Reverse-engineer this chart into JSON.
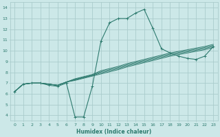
{
  "xlabel": "Humidex (Indice chaleur)",
  "ylabel": "",
  "bg_color": "#cce8e8",
  "grid_color": "#aacccc",
  "line_color": "#2d7a6e",
  "xlim": [
    -0.5,
    23.5
  ],
  "ylim": [
    3.5,
    14.5
  ],
  "xticks": [
    0,
    1,
    2,
    3,
    4,
    5,
    6,
    7,
    8,
    9,
    10,
    11,
    12,
    13,
    14,
    15,
    16,
    17,
    18,
    19,
    20,
    21,
    22,
    23
  ],
  "yticks": [
    4,
    5,
    6,
    7,
    8,
    9,
    10,
    11,
    12,
    13,
    14
  ],
  "lines": [
    {
      "y": [
        6.2,
        6.9,
        7.0,
        7.0,
        6.8,
        6.7,
        7.0,
        3.85,
        3.85,
        6.7,
        10.9,
        12.6,
        13.0,
        13.0,
        13.5,
        13.85,
        12.1,
        10.2,
        9.8,
        9.5,
        9.3,
        9.2,
        9.5,
        10.4
      ],
      "marker": true
    },
    {
      "y": [
        6.2,
        6.9,
        7.0,
        7.0,
        6.9,
        6.8,
        7.1,
        7.25,
        7.45,
        7.65,
        7.85,
        8.05,
        8.25,
        8.5,
        8.7,
        8.9,
        9.1,
        9.3,
        9.5,
        9.65,
        9.8,
        9.95,
        10.1,
        10.3
      ],
      "marker": false
    },
    {
      "y": [
        6.2,
        6.9,
        7.0,
        7.0,
        6.9,
        6.8,
        7.1,
        7.3,
        7.5,
        7.7,
        7.95,
        8.15,
        8.35,
        8.6,
        8.8,
        9.0,
        9.2,
        9.4,
        9.6,
        9.75,
        9.9,
        10.05,
        10.2,
        10.4
      ],
      "marker": false
    },
    {
      "y": [
        6.2,
        6.9,
        7.0,
        7.0,
        6.9,
        6.8,
        7.1,
        7.35,
        7.55,
        7.75,
        8.05,
        8.25,
        8.45,
        8.7,
        8.9,
        9.1,
        9.3,
        9.5,
        9.7,
        9.85,
        10.0,
        10.15,
        10.3,
        10.5
      ],
      "marker": false
    },
    {
      "y": [
        6.2,
        6.9,
        7.0,
        7.0,
        6.9,
        6.8,
        7.1,
        7.4,
        7.6,
        7.8,
        8.15,
        8.35,
        8.55,
        8.8,
        9.0,
        9.2,
        9.4,
        9.6,
        9.8,
        9.95,
        10.1,
        10.25,
        10.4,
        10.6
      ],
      "marker": false
    }
  ],
  "figsize": [
    3.2,
    2.0
  ],
  "dpi": 100
}
